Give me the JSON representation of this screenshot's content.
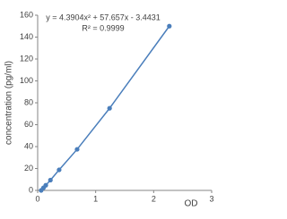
{
  "chart_data": {
    "type": "scatter",
    "annotations": [
      "y = 4.3904x² + 57.657x - 3.4431",
      "R² = 0.9999"
    ],
    "x_label": "OD",
    "y_label": "concentration (pg/ml)",
    "x": [
      0.06,
      0.1,
      0.14,
      0.22,
      0.37,
      0.68,
      1.24,
      2.27
    ],
    "series": [
      {
        "color": "#4a7ebb",
        "values": [
          0,
          2.34,
          4.69,
          9.38,
          18.75,
          37.5,
          75,
          150
        ]
      }
    ],
    "xlim": [
      0,
      3
    ],
    "xticks": [
      0,
      1,
      2,
      3
    ],
    "ylim": [
      0,
      160
    ],
    "yticks": [
      0,
      20,
      40,
      60,
      80,
      100,
      120,
      140,
      160
    ]
  }
}
